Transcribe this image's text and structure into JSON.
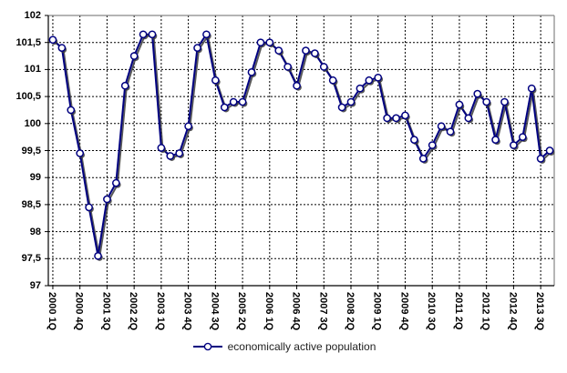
{
  "legend": {
    "label": "economically active population"
  },
  "chart_data": {
    "type": "line",
    "title": "",
    "xlabel": "",
    "ylabel": "",
    "ylim": [
      97,
      102
    ],
    "y_tick_step": 0.5,
    "y_tick_labels": [
      "102",
      "101,5",
      "101",
      "100,5",
      "100",
      "99,5",
      "99",
      "98,5",
      "98",
      "97,5",
      "97"
    ],
    "x_tick_every": 3,
    "x_tick_labels": [
      "2000 1Q",
      "2000 4Q",
      "2001 3Q",
      "2002 2Q",
      "2003 1Q",
      "2003 4Q",
      "2004 3Q",
      "2005 2Q",
      "2006 1Q",
      "2006 4Q",
      "2007 3Q",
      "2008 2Q",
      "2009 1Q",
      "2009 4Q",
      "2010 3Q",
      "2011 2Q",
      "2012 1Q",
      "2012 4Q",
      "2013 3Q"
    ],
    "categories": [
      "2000 1Q",
      "2000 2Q",
      "2000 3Q",
      "2000 4Q",
      "2001 1Q",
      "2001 2Q",
      "2001 3Q",
      "2001 4Q",
      "2002 1Q",
      "2002 2Q",
      "2002 3Q",
      "2002 4Q",
      "2003 1Q",
      "2003 2Q",
      "2003 3Q",
      "2003 4Q",
      "2004 1Q",
      "2004 2Q",
      "2004 3Q",
      "2004 4Q",
      "2005 1Q",
      "2005 2Q",
      "2005 3Q",
      "2005 4Q",
      "2006 1Q",
      "2006 2Q",
      "2006 3Q",
      "2006 4Q",
      "2007 1Q",
      "2007 2Q",
      "2007 3Q",
      "2007 4Q",
      "2008 1Q",
      "2008 2Q",
      "2008 3Q",
      "2008 4Q",
      "2009 1Q",
      "2009 2Q",
      "2009 3Q",
      "2009 4Q",
      "2010 1Q",
      "2010 2Q",
      "2010 3Q",
      "2010 4Q",
      "2011 1Q",
      "2011 2Q",
      "2011 3Q",
      "2011 4Q",
      "2012 1Q",
      "2012 2Q",
      "2012 3Q",
      "2012 4Q",
      "2013 1Q",
      "2013 2Q",
      "2013 3Q",
      "2013 4Q"
    ],
    "series": [
      {
        "name": "economically active population",
        "values": [
          101.55,
          101.4,
          100.25,
          99.45,
          98.45,
          97.55,
          98.6,
          98.9,
          100.7,
          101.25,
          101.65,
          101.65,
          99.55,
          99.4,
          99.45,
          99.95,
          101.4,
          101.65,
          100.8,
          100.3,
          100.4,
          100.4,
          100.95,
          101.5,
          101.5,
          101.35,
          101.05,
          100.7,
          101.35,
          101.3,
          101.05,
          100.8,
          100.3,
          100.4,
          100.65,
          100.8,
          100.85,
          100.1,
          100.1,
          100.15,
          99.7,
          99.35,
          99.6,
          99.95,
          99.85,
          100.35,
          100.1,
          100.55,
          100.4,
          99.7,
          100.4,
          99.6,
          99.75,
          100.65,
          99.35,
          99.5
        ]
      }
    ],
    "grid": "dashed, horizontal every 0.5, vertical every 3rd quarter",
    "legend_position": "bottom-center",
    "colors": {
      "line": "#000080",
      "marker_fill": "#ffffff",
      "marker_border": "#000080",
      "shadow": "#3c3c3c",
      "grid": "#000000",
      "axis": "#000000",
      "plot_border": "#868686",
      "text": "#000000",
      "legend_text": "#222222",
      "background": "#ffffff"
    }
  }
}
